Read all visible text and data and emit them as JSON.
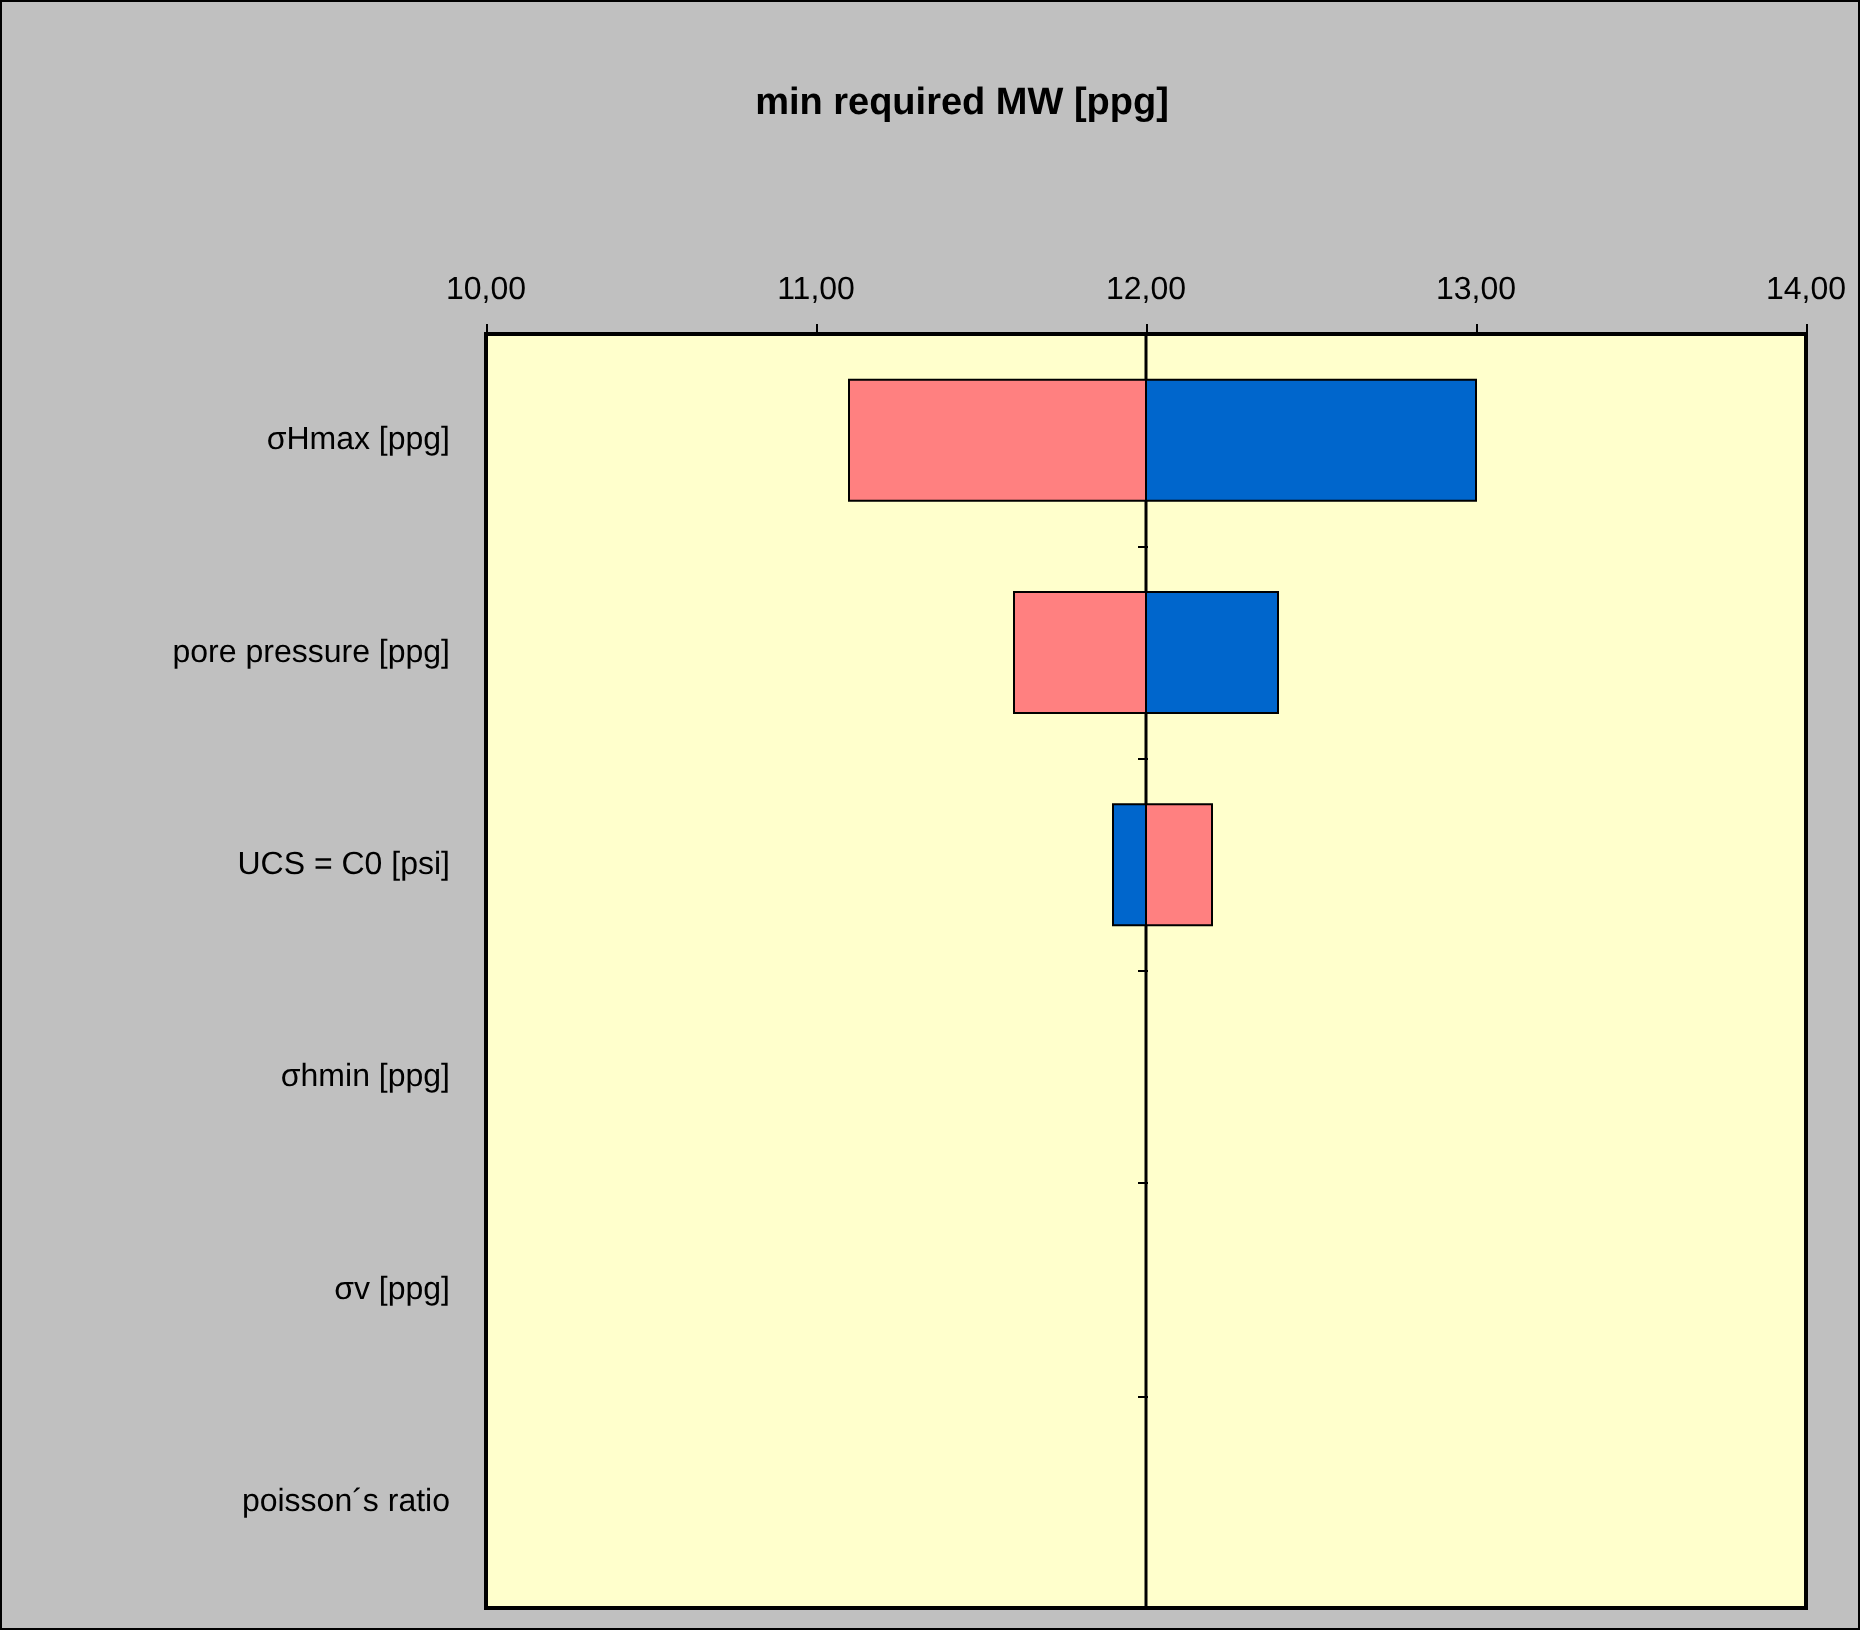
{
  "chart_data": {
    "type": "bar",
    "orientation": "horizontal",
    "title": "min required MW [ppg]",
    "categories": [
      "σHmax [ppg]",
      "pore pressure [ppg]",
      "UCS = C0 [psi]",
      "σhmin [ppg]",
      "σv [ppg]",
      "poisson´s ratio"
    ],
    "series": [
      {
        "color": "#ff8080",
        "base": [
          11.1,
          11.6,
          12,
          null,
          null,
          null
        ],
        "values": [
          0.9,
          0.4,
          0.2,
          null,
          null,
          null
        ]
      },
      {
        "color": "#0066cc",
        "base": [
          12,
          12,
          11.9,
          null,
          null,
          null
        ],
        "values": [
          1.0,
          0.4,
          0.1,
          null,
          null,
          null
        ]
      }
    ],
    "xlim": [
      10,
      14
    ],
    "xticks": [
      {
        "value": 10,
        "label": "10,00"
      },
      {
        "value": 11,
        "label": "11,00"
      },
      {
        "value": 12,
        "label": "12,00"
      },
      {
        "value": 13,
        "label": "13,00"
      },
      {
        "value": 14,
        "label": "14,00"
      }
    ],
    "ref_lines": [
      {
        "axis": "x",
        "value": 12
      }
    ]
  }
}
